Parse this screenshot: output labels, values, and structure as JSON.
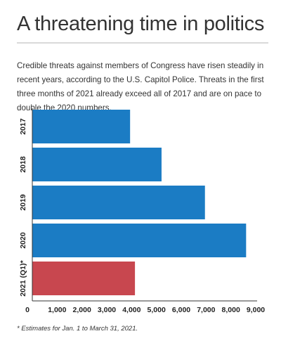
{
  "headline": "A threatening time in politics",
  "dek": "Credible threats against members of Congress have risen steadily in recent years, according to the U.S. Capitol Police. Threats in the first three months of 2021 already exceed all of 2017 and are on pace to double the 2020 numbers.",
  "footnote": "* Estimates for Jan. 1 to March 31, 2021.",
  "colors": {
    "default_bar": "#1b7cc4",
    "highlight_bar": "#c8474f",
    "axis": "#333333"
  },
  "chart_data": {
    "type": "bar",
    "orientation": "horizontal",
    "categories": [
      "2017",
      "2018",
      "2019",
      "2020",
      "2021 (Q1)*"
    ],
    "values": [
      3939,
      5206,
      6955,
      8613,
      4135
    ],
    "highlight": "2021 (Q1)*",
    "xlim": [
      0,
      9000
    ],
    "xticks": [
      0,
      1000,
      2000,
      3000,
      4000,
      5000,
      6000,
      7000,
      8000,
      9000
    ],
    "tick_labels": [
      "0",
      "1,000",
      "2,000",
      "3,000",
      "4,000",
      "5,000",
      "6,000",
      "7,000",
      "8,000",
      "9,000"
    ],
    "title": "",
    "xlabel": "",
    "ylabel": "",
    "grid": false
  }
}
